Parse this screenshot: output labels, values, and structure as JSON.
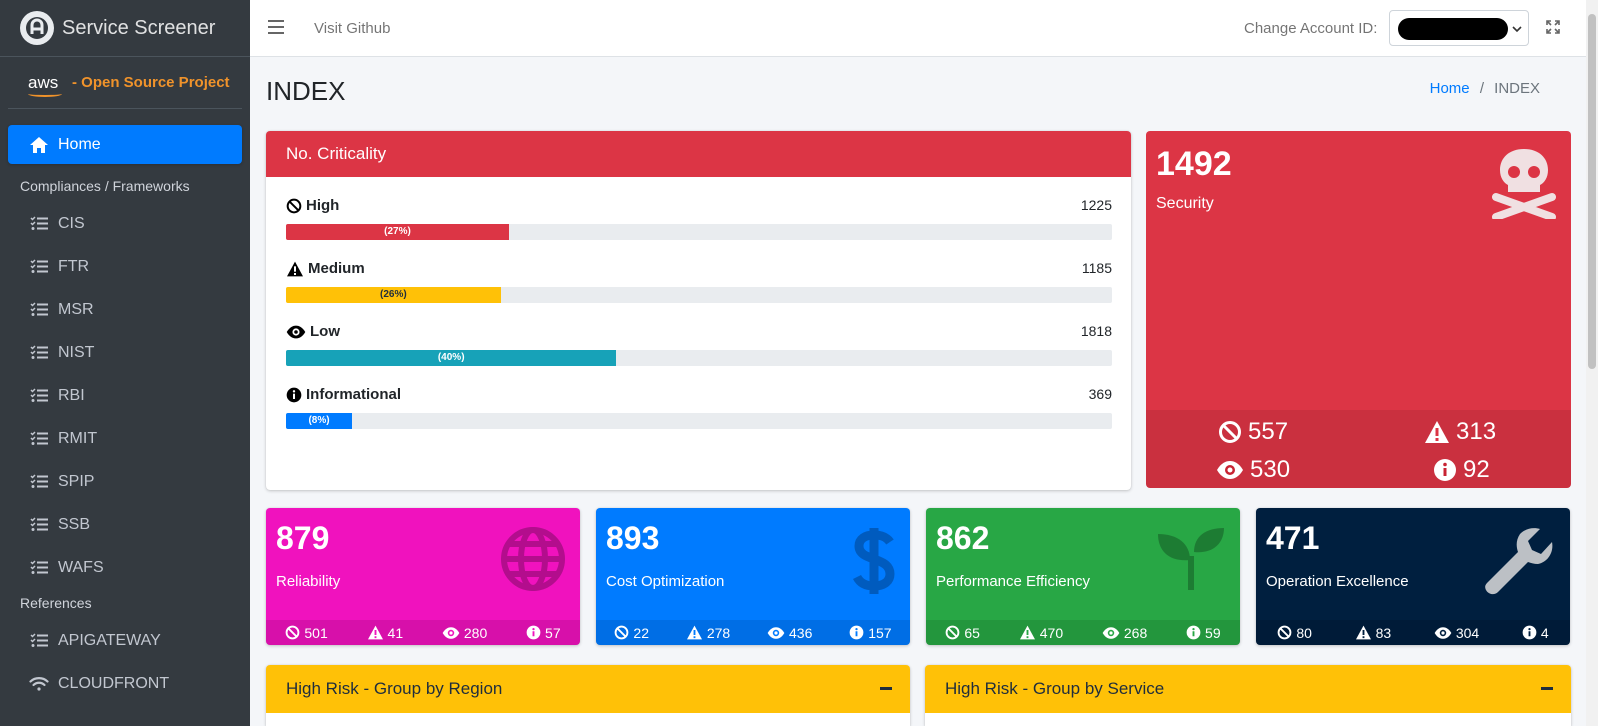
{
  "sidebar": {
    "brand_title": "Service Screener",
    "aws_logo": "aws",
    "aws_text": "- Open Source Project",
    "home_label": "Home",
    "section_compliance": "Compliances / Frameworks",
    "compliance_items": [
      {
        "label": "CIS",
        "icon": "list-check-icon"
      },
      {
        "label": "FTR",
        "icon": "list-check-icon"
      },
      {
        "label": "MSR",
        "icon": "list-check-icon"
      },
      {
        "label": "NIST",
        "icon": "list-check-icon"
      },
      {
        "label": "RBI",
        "icon": "list-check-icon"
      },
      {
        "label": "RMIT",
        "icon": "list-check-icon"
      },
      {
        "label": "SPIP",
        "icon": "list-check-icon"
      },
      {
        "label": "SSB",
        "icon": "list-check-icon"
      },
      {
        "label": "WAFS",
        "icon": "list-check-icon"
      }
    ],
    "section_references": "References",
    "reference_items": [
      {
        "label": "APIGATEWAY",
        "icon": "list-check-icon"
      },
      {
        "label": "CLOUDFRONT",
        "icon": "wifi-icon"
      }
    ]
  },
  "topbar": {
    "visit_github": "Visit Github",
    "change_account_label": "Change Account ID:",
    "account_value_redacted": true
  },
  "page": {
    "title": "INDEX",
    "breadcrumb_home": "Home",
    "breadcrumb_sep": "/",
    "breadcrumb_current": "INDEX"
  },
  "criticality": {
    "header": "No. Criticality",
    "rows": [
      {
        "label": "High",
        "count": "1225",
        "percent_label": "(27%)",
        "percent": 27,
        "color": "#dc3545",
        "text_color": "#ffffff",
        "icon": "ban-icon"
      },
      {
        "label": "Medium",
        "count": "1185",
        "percent_label": "(26%)",
        "percent": 26,
        "color": "#ffc107",
        "text_color": "#1f2d3d",
        "icon": "warning-icon"
      },
      {
        "label": "Low",
        "count": "1818",
        "percent_label": "(40%)",
        "percent": 40,
        "color": "#17a2b8",
        "text_color": "#ffffff",
        "icon": "eye-icon"
      },
      {
        "label": "Informational",
        "count": "369",
        "percent_label": "(8%)",
        "percent": 8,
        "color": "#007bff",
        "text_color": "#ffffff",
        "icon": "info-icon"
      }
    ]
  },
  "security": {
    "total": "1492",
    "label": "Security",
    "icon": "skull-crossbones-icon",
    "color": "#dc3545",
    "high": "557",
    "medium": "313",
    "low": "530",
    "info": "92"
  },
  "pillars": [
    {
      "total": "879",
      "label": "Reliability",
      "color": "#f012be",
      "icon": "globe-icon",
      "high": "501",
      "medium": "41",
      "low": "280",
      "info": "57"
    },
    {
      "total": "893",
      "label": "Cost Optimization",
      "color": "#007bff",
      "icon": "dollar-icon",
      "high": "22",
      "medium": "278",
      "low": "436",
      "info": "157"
    },
    {
      "total": "862",
      "label": "Performance Efficiency",
      "color": "#28a745",
      "icon": "seedling-icon",
      "high": "65",
      "medium": "470",
      "low": "268",
      "info": "59"
    },
    {
      "total": "471",
      "label": "Operation Excellence",
      "color": "#001f3f",
      "icon": "wrench-icon",
      "high": "80",
      "medium": "83",
      "low": "304",
      "info": "4"
    }
  ],
  "risk_cards": [
    {
      "title": "High Risk - Group by Region",
      "color": "#ffc107"
    },
    {
      "title": "High Risk - Group by Service",
      "color": "#ffc107"
    }
  ]
}
